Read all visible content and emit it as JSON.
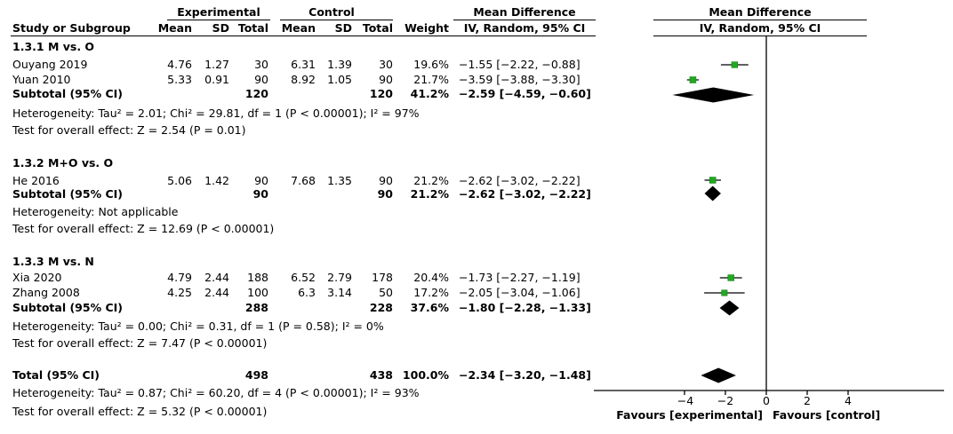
{
  "header": {
    "experimental": "Experimental",
    "control": "Control",
    "mean_difference": "Mean Difference",
    "study_col": "Study or Subgroup",
    "mean": "Mean",
    "sd": "SD",
    "total": "Total",
    "weight": "Weight",
    "method": "IV, Random, 95% CI"
  },
  "subgroups": [
    {
      "title": "1.3.1 M vs. O",
      "studies": [
        {
          "name": "Ouyang 2019",
          "e_mean": "4.76",
          "e_sd": "1.27",
          "e_total": "30",
          "c_mean": "6.31",
          "c_sd": "1.39",
          "c_total": "30",
          "weight": "19.6%",
          "ci": "−1.55 [−2.22, −0.88]"
        },
        {
          "name": "Yuan 2010",
          "e_mean": "5.33",
          "e_sd": "0.91",
          "e_total": "90",
          "c_mean": "8.92",
          "c_sd": "1.05",
          "c_total": "90",
          "weight": "21.7%",
          "ci": "−3.59 [−3.88, −3.30]"
        }
      ],
      "subtotal": {
        "label": "Subtotal (95% CI)",
        "e_total": "120",
        "c_total": "120",
        "weight": "41.2%",
        "ci": "−2.59 [−4.59, −0.60]"
      },
      "heterogeneity": "Heterogeneity: Tau² = 2.01; Chi² = 29.81, df = 1 (P < 0.00001); I² = 97%",
      "overall": "Test for overall effect: Z = 2.54 (P = 0.01)"
    },
    {
      "title": "1.3.2 M+O vs. O",
      "studies": [
        {
          "name": "He 2016",
          "e_mean": "5.06",
          "e_sd": "1.42",
          "e_total": "90",
          "c_mean": "7.68",
          "c_sd": "1.35",
          "c_total": "90",
          "weight": "21.2%",
          "ci": "−2.62 [−3.02, −2.22]"
        }
      ],
      "subtotal": {
        "label": "Subtotal (95% CI)",
        "e_total": "90",
        "c_total": "90",
        "weight": "21.2%",
        "ci": "−2.62 [−3.02, −2.22]"
      },
      "heterogeneity": "Heterogeneity: Not applicable",
      "overall": "Test for overall effect: Z = 12.69 (P < 0.00001)"
    },
    {
      "title": "1.3.3 M vs. N",
      "studies": [
        {
          "name": "Xia 2020",
          "e_mean": "4.79",
          "e_sd": "2.44",
          "e_total": "188",
          "c_mean": "6.52",
          "c_sd": "2.79",
          "c_total": "178",
          "weight": "20.4%",
          "ci": "−1.73 [−2.27, −1.19]"
        },
        {
          "name": "Zhang 2008",
          "e_mean": "4.25",
          "e_sd": "2.44",
          "e_total": "100",
          "c_mean": "6.3",
          "c_sd": "3.14",
          "c_total": "50",
          "weight": "17.2%",
          "ci": "−2.05 [−3.04, −1.06]"
        }
      ],
      "subtotal": {
        "label": "Subtotal (95% CI)",
        "e_total": "288",
        "c_total": "228",
        "weight": "37.6%",
        "ci": "−1.80 [−2.28, −1.33]"
      },
      "heterogeneity": "Heterogeneity: Tau² = 0.00; Chi² = 0.31, df = 1 (P = 0.58); I² = 0%",
      "overall": "Test for overall effect: Z = 7.47 (P < 0.00001)"
    }
  ],
  "total": {
    "label": "Total (95% CI)",
    "e_total": "498",
    "c_total": "438",
    "weight": "100.0%",
    "ci": "−2.34 [−3.20, −1.48]"
  },
  "total_heterogeneity": "Heterogeneity: Tau² = 0.87; Chi² = 60.20, df = 4 (P < 0.00001); I² = 93%",
  "total_overall": "Test for overall effect: Z = 5.32 (P < 0.00001)",
  "plot": {
    "title": "Mean Difference",
    "method": "IV, Random, 95% CI",
    "ticks": [
      "−4",
      "−2",
      "0",
      "2",
      "4"
    ],
    "favours_left": "Favours [experimental]",
    "favours_right": "Favours [control]"
  },
  "chart_data": {
    "type": "scatter",
    "xlim": [
      -4,
      4
    ],
    "square_color": "#22a822",
    "diamond_color": "#000000",
    "studies": [
      {
        "name": "Ouyang 2019",
        "md": -1.55,
        "lo": -2.22,
        "hi": -0.88,
        "weight": 19.6
      },
      {
        "name": "Yuan 2010",
        "md": -3.59,
        "lo": -3.88,
        "hi": -3.3,
        "weight": 21.7
      },
      {
        "name": "He 2016",
        "md": -2.62,
        "lo": -3.02,
        "hi": -2.22,
        "weight": 21.2
      },
      {
        "name": "Xia 2020",
        "md": -1.73,
        "lo": -2.27,
        "hi": -1.19,
        "weight": 20.4
      },
      {
        "name": "Zhang 2008",
        "md": -2.05,
        "lo": -3.04,
        "hi": -1.06,
        "weight": 17.2
      }
    ],
    "diamonds": [
      {
        "name": "Subtotal 1.3.1",
        "md": -2.59,
        "lo": -4.59,
        "hi": -0.6
      },
      {
        "name": "Subtotal 1.3.2",
        "md": -2.62,
        "lo": -3.02,
        "hi": -2.22
      },
      {
        "name": "Subtotal 1.3.3",
        "md": -1.8,
        "lo": -2.28,
        "hi": -1.33
      },
      {
        "name": "Total",
        "md": -2.34,
        "lo": -3.2,
        "hi": -1.48
      }
    ]
  }
}
